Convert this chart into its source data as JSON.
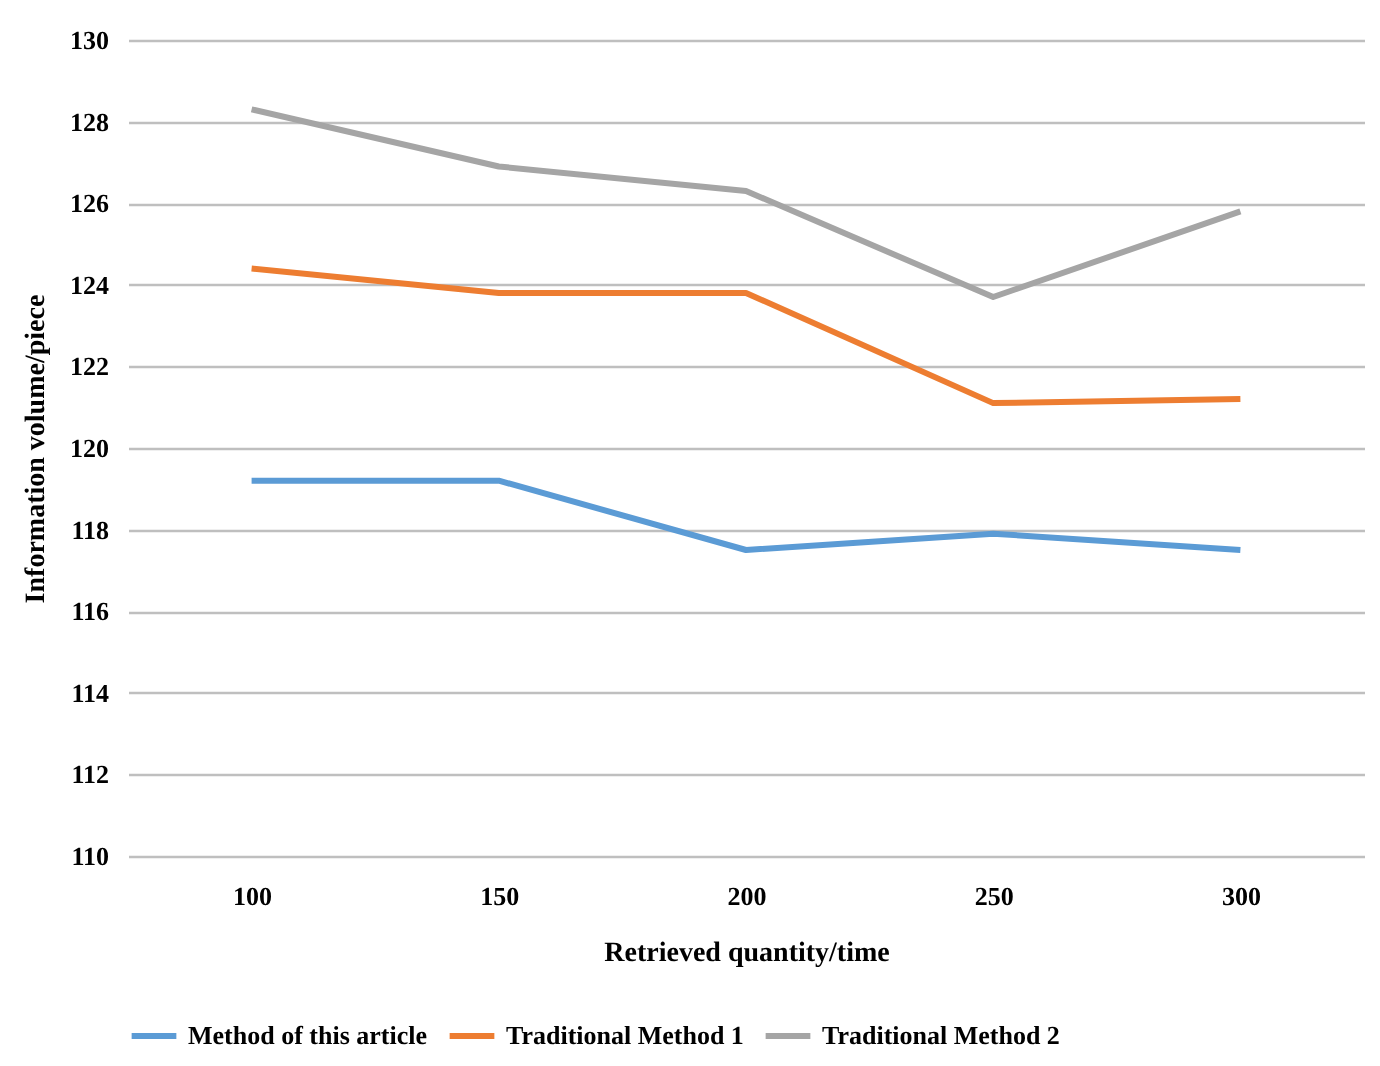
{
  "chart_data": {
    "type": "line",
    "xlabel": "Retrieved quantity/time",
    "ylabel": "Information volume/piece",
    "categories": [
      "100",
      "150",
      "200",
      "250",
      "300"
    ],
    "series": [
      {
        "name": "Method of this article",
        "color": "#5b9bd5",
        "values": [
          119.2,
          119.2,
          117.5,
          117.9,
          117.5
        ]
      },
      {
        "name": "Traditional Method 1",
        "color": "#ed7d31",
        "values": [
          124.4,
          123.8,
          123.8,
          121.1,
          121.2
        ]
      },
      {
        "name": "Traditional Method 2",
        "color": "#a5a5a5",
        "values": [
          128.3,
          126.9,
          126.3,
          123.7,
          125.8
        ]
      }
    ],
    "ylim": [
      110,
      130
    ],
    "yticks": [
      110,
      112,
      114,
      116,
      118,
      120,
      122,
      124,
      126,
      128,
      130
    ],
    "grid": "y",
    "legend": "bottom",
    "marker": "none",
    "line_style": "solid"
  }
}
